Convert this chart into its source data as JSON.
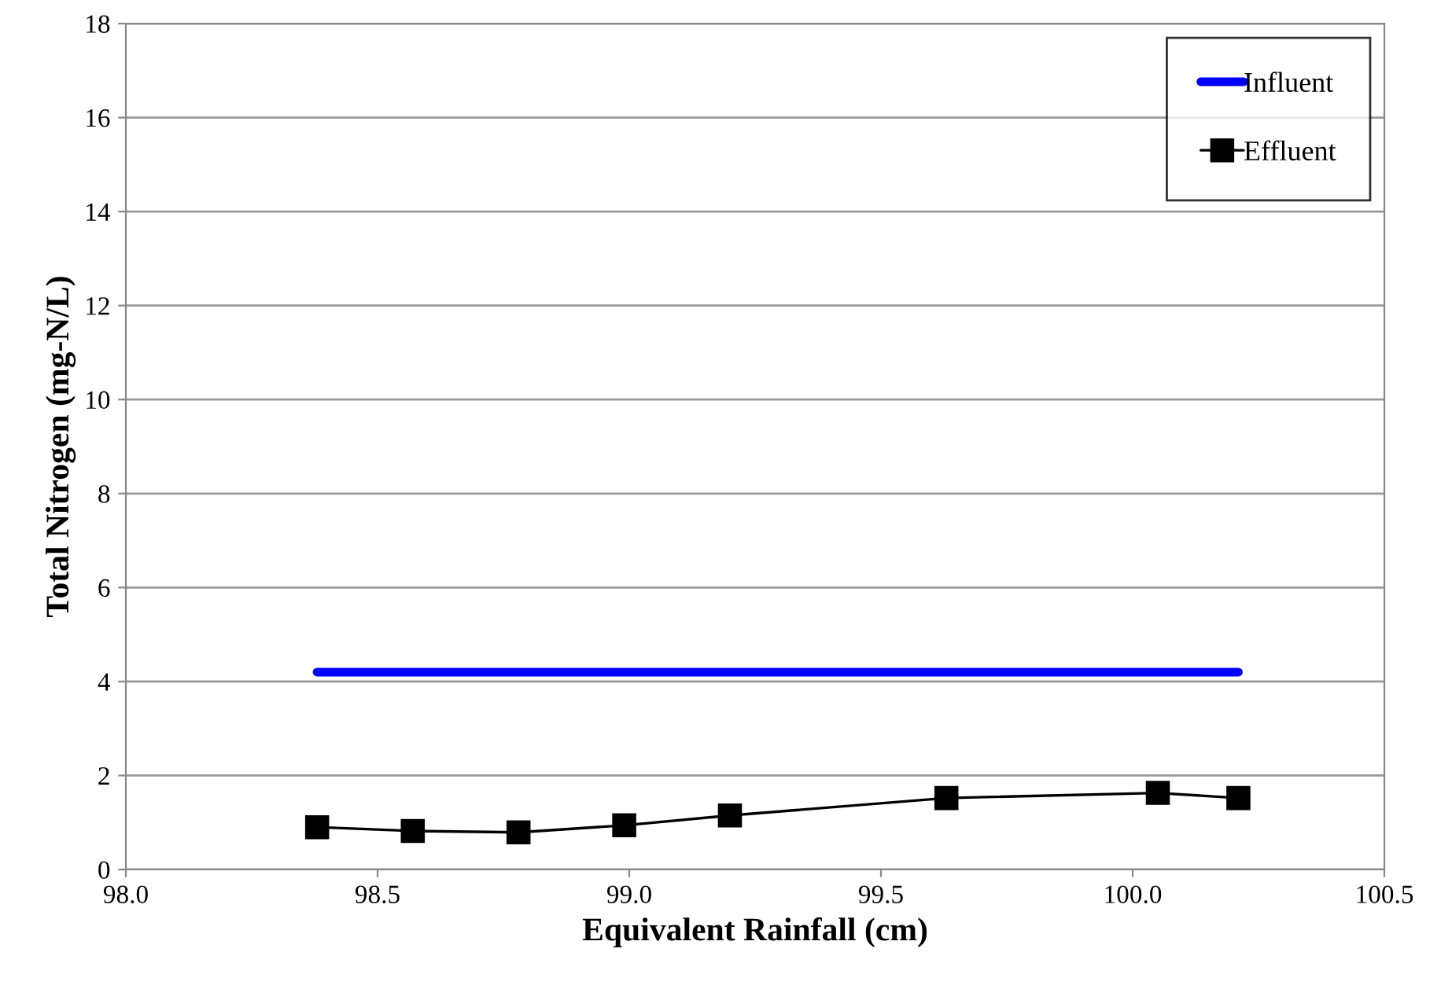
{
  "chart_data": {
    "type": "line",
    "xlabel": "Equivalent Rainfall (cm)",
    "ylabel": "Total Nitrogen (mg-N/L)",
    "series": [
      {
        "name": "Influent",
        "color": "#0000ff",
        "x": [
          98.38,
          100.21
        ],
        "values": [
          4.2,
          4.2
        ],
        "marker": "none"
      },
      {
        "name": "Effluent",
        "color": "#000000",
        "x": [
          98.38,
          98.57,
          98.78,
          98.99,
          99.2,
          99.63,
          100.05,
          100.21
        ],
        "values": [
          0.9,
          0.82,
          0.79,
          0.94,
          1.15,
          1.52,
          1.63,
          1.52
        ],
        "marker": "square"
      }
    ],
    "xlim": [
      98.0,
      100.5
    ],
    "xticks": [
      {
        "value": 98.0,
        "label": "98.0"
      },
      {
        "value": 98.5,
        "label": "98.5"
      },
      {
        "value": 99.0,
        "label": "99.0"
      },
      {
        "value": 99.5,
        "label": "99.5"
      },
      {
        "value": 100.0,
        "label": "100.0"
      },
      {
        "value": 100.5,
        "label": "100.5"
      }
    ],
    "ylim": [
      0,
      18
    ],
    "yticks": [
      0,
      2,
      4,
      6,
      8,
      10,
      12,
      14,
      16,
      18
    ],
    "grid": "y",
    "legend": "top right"
  }
}
